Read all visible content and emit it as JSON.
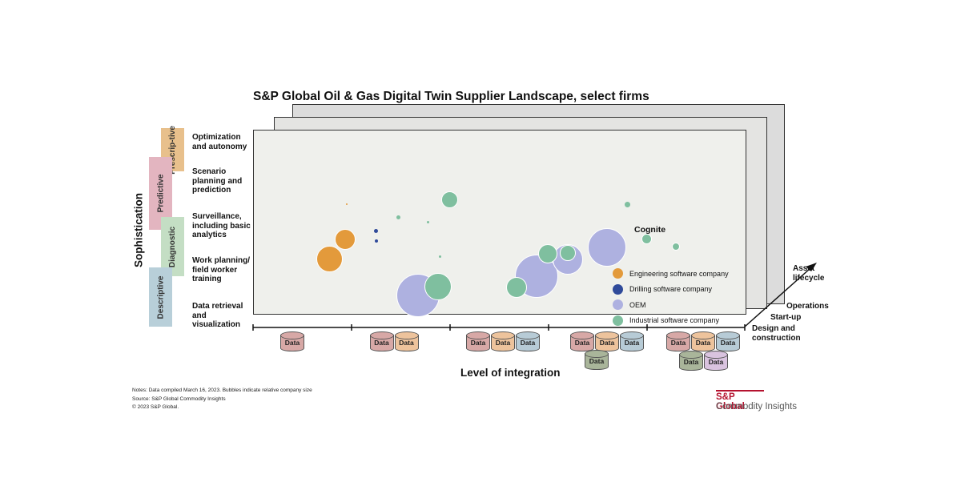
{
  "title": "S&P Global Oil & Gas Digital Twin Supplier Landscape, select firms",
  "y_axis_label": "Sophistication",
  "x_axis_label": "Level of integration",
  "category_tags": {
    "prescriptive": "Prescrip-tive",
    "predictive": "Predictive",
    "diagnostic": "Diagnostic",
    "descriptive": "Descriptive"
  },
  "levels": [
    "Optimization and autonomy",
    "Scenario planning and prediction",
    "Surveillance, including basic analytics",
    "Work planning/ field worker training",
    "Data retrieval and visualization"
  ],
  "lifecycle": {
    "axis": "Asset lifecycle",
    "stages": [
      "Operations",
      "Start-up",
      "Design and construction"
    ]
  },
  "data_label": "Data",
  "colors": {
    "engineering": "#e39a3b",
    "drilling": "#2f4a9a",
    "oem": "#aeb1e0",
    "industrial": "#7fbf9f",
    "panel_front": "#eff0ec",
    "brand_red": "#b5122f"
  },
  "chart_data": {
    "type": "scatter",
    "title": "S&P Global Oil & Gas Digital Twin Supplier Landscape, select firms",
    "xlabel": "Level of integration",
    "ylabel": "Sophistication",
    "x_categories": [
      "1",
      "2",
      "3",
      "4",
      "5"
    ],
    "y_categories": [
      "Data retrieval and visualization",
      "Work planning/ field worker training",
      "Surveillance, including basic analytics",
      "Scenario planning and prediction",
      "Optimization and autonomy"
    ],
    "xlim": [
      0.5,
      5.5
    ],
    "ylim": [
      0.5,
      5.5
    ],
    "series": [
      {
        "name": "Engineering software company",
        "color": "#e39a3b",
        "points": [
          {
            "x": 1.45,
            "y": 3.65,
            "size": 2
          },
          {
            "x": 1.44,
            "y": 2.75,
            "size": 26
          },
          {
            "x": 1.28,
            "y": 2.25,
            "size": 33
          }
        ]
      },
      {
        "name": "Drilling software company",
        "color": "#2f4a9a",
        "points": [
          {
            "x": 1.75,
            "y": 2.95,
            "size": 5
          },
          {
            "x": 1.75,
            "y": 2.7,
            "size": 4
          }
        ]
      },
      {
        "name": "OEM",
        "color": "#aeb1e0",
        "points": [
          {
            "x": 2.18,
            "y": 1.32,
            "size": 54
          },
          {
            "x": 3.38,
            "y": 1.8,
            "size": 54
          },
          {
            "x": 3.7,
            "y": 2.24,
            "size": 38
          },
          {
            "x": 4.1,
            "y": 2.54,
            "size": 48
          }
        ]
      },
      {
        "name": "Industrial software company",
        "color": "#7fbf9f",
        "points": [
          {
            "x": 2.38,
            "y": 1.54,
            "size": 34
          },
          {
            "x": 2.4,
            "y": 2.3,
            "size": 3
          },
          {
            "x": 2.5,
            "y": 3.75,
            "size": 21
          },
          {
            "x": 1.98,
            "y": 3.3,
            "size": 5
          },
          {
            "x": 2.28,
            "y": 3.18,
            "size": 3
          },
          {
            "x": 3.18,
            "y": 1.53,
            "size": 26
          },
          {
            "x": 3.5,
            "y": 2.38,
            "size": 24
          },
          {
            "x": 3.7,
            "y": 2.4,
            "size": 20
          },
          {
            "x": 4.31,
            "y": 3.63,
            "size": 7
          },
          {
            "x": 4.5,
            "y": 2.75,
            "size": 13
          },
          {
            "x": 4.8,
            "y": 2.56,
            "size": 10
          }
        ]
      }
    ],
    "annotations": [
      {
        "text": "Cognite",
        "x": 4.8,
        "y": 2.56
      }
    ],
    "integration_levels": [
      [
        "Data"
      ],
      [
        "Data",
        "Data"
      ],
      [
        "Data",
        "Data",
        "Data"
      ],
      [
        "Data",
        "Data",
        "Data",
        "Data"
      ],
      [
        "Data",
        "Data",
        "Data",
        "Data",
        "Data"
      ]
    ]
  },
  "legend": [
    {
      "label": "Engineering software company",
      "color": "#e39a3b"
    },
    {
      "label": "Drilling software company",
      "color": "#2f4a9a"
    },
    {
      "label": "OEM",
      "color": "#aeb1e0"
    },
    {
      "label": "Industrial software company",
      "color": "#7fbf9f"
    }
  ],
  "notes": [
    "Notes: Data compiled March 16, 2023. Bubbles indicate relative company size",
    "Source: S&P Global Commodity Insights",
    "© 2023 S&P Global."
  ],
  "logo": {
    "line1": "S&P Global",
    "line2": "Commodity Insights"
  }
}
